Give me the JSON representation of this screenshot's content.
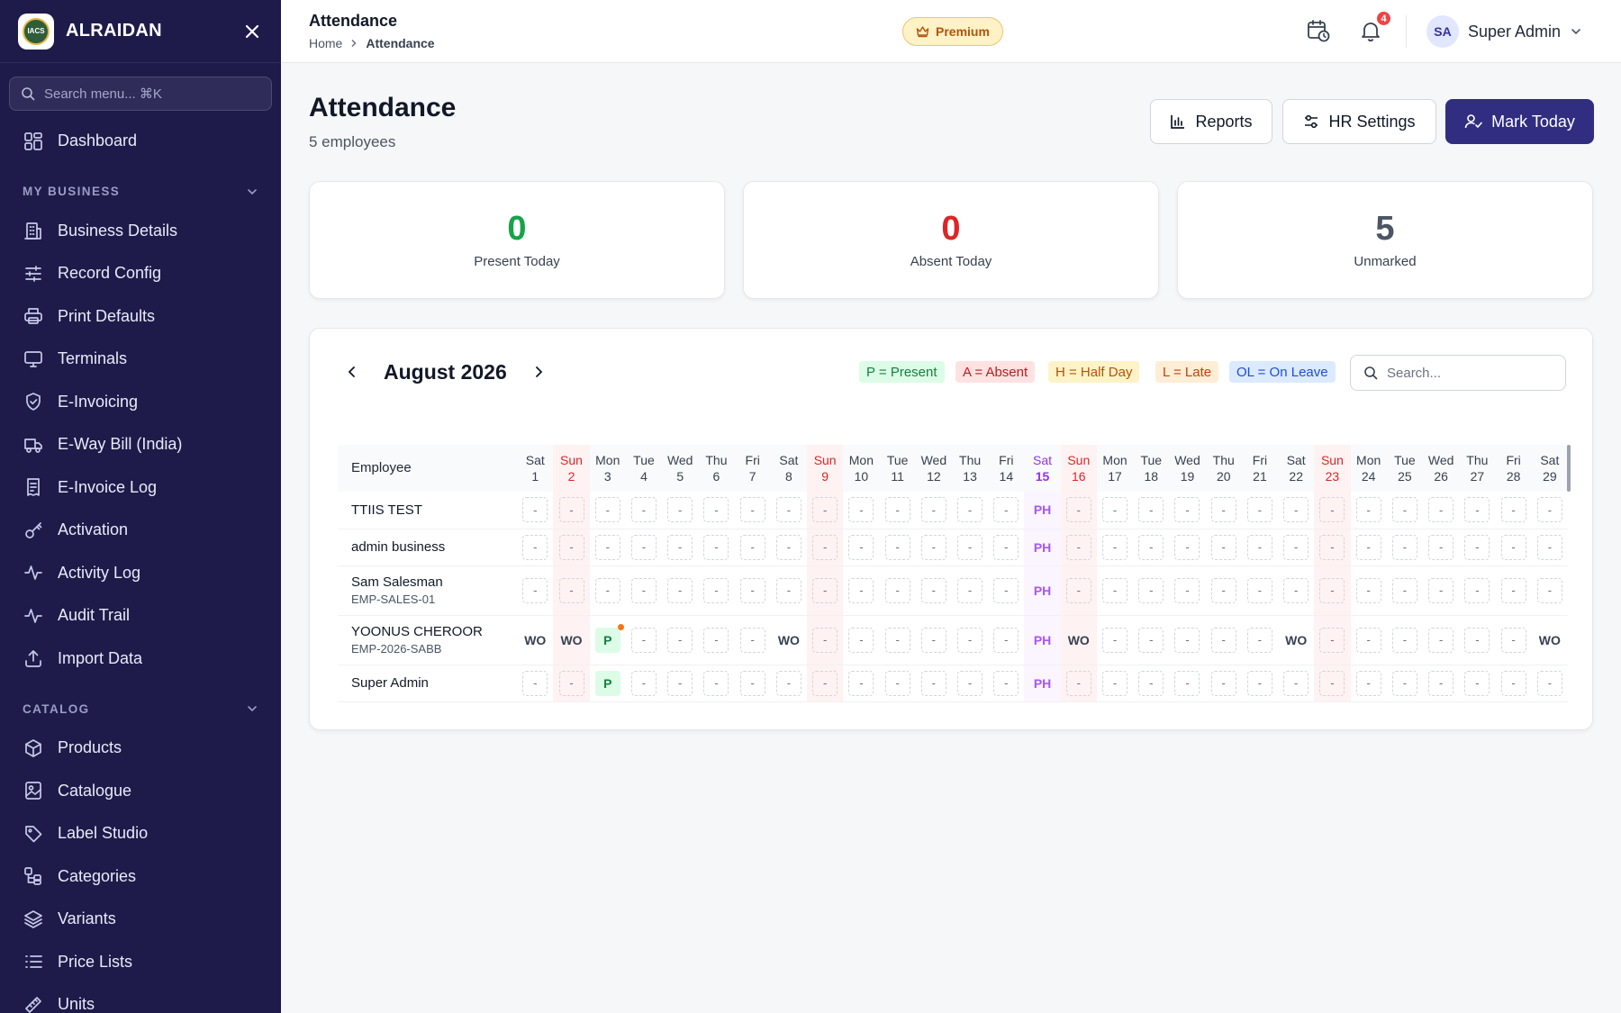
{
  "sidebar": {
    "brand": "ALRAIDAN",
    "logo_text": "IACS",
    "search_placeholder": "Search menu... ⌘K",
    "top_items": [
      {
        "label": "Dashboard",
        "icon": "dashboard-icon"
      }
    ],
    "sections": [
      {
        "title": "MY BUSINESS",
        "items": [
          {
            "label": "Business Details",
            "icon": "building-icon"
          },
          {
            "label": "Record Config",
            "icon": "sliders-icon"
          },
          {
            "label": "Print Defaults",
            "icon": "printer-icon"
          },
          {
            "label": "Terminals",
            "icon": "monitor-icon"
          },
          {
            "label": "E-Invoicing",
            "icon": "shield-check-icon"
          },
          {
            "label": "E-Way Bill (India)",
            "icon": "truck-icon"
          },
          {
            "label": "E-Invoice Log",
            "icon": "receipt-icon"
          },
          {
            "label": "Activation",
            "icon": "key-icon"
          },
          {
            "label": "Activity Log",
            "icon": "activity-icon"
          },
          {
            "label": "Audit Trail",
            "icon": "activity-icon"
          },
          {
            "label": "Import Data",
            "icon": "upload-icon"
          }
        ]
      },
      {
        "title": "CATALOG",
        "items": [
          {
            "label": "Products",
            "icon": "package-icon"
          },
          {
            "label": "Catalogue",
            "icon": "image-icon"
          },
          {
            "label": "Label Studio",
            "icon": "tag-icon"
          },
          {
            "label": "Categories",
            "icon": "categories-icon"
          },
          {
            "label": "Variants",
            "icon": "layers-icon"
          },
          {
            "label": "Price Lists",
            "icon": "list-icon"
          },
          {
            "label": "Units",
            "icon": "ruler-icon"
          }
        ]
      }
    ]
  },
  "topbar": {
    "title": "Attendance",
    "breadcrumb": [
      "Home",
      "Attendance"
    ],
    "premium": "Premium",
    "notifications": "4",
    "user_initials": "SA",
    "user_name": "Super Admin"
  },
  "page": {
    "title": "Attendance",
    "subtitle": "5 employees",
    "buttons": {
      "reports": "Reports",
      "hr_settings": "HR Settings",
      "mark_today": "Mark Today"
    }
  },
  "stats": [
    {
      "value": "0",
      "label": "Present Today",
      "color": "#16a34a"
    },
    {
      "value": "0",
      "label": "Absent Today",
      "color": "#dc2626"
    },
    {
      "value": "5",
      "label": "Unmarked",
      "color": "#4b5563"
    }
  ],
  "calendar": {
    "month": "August 2026",
    "legend": [
      {
        "label": "P = Present",
        "bg": "#dcfce7",
        "fg": "#15803d"
      },
      {
        "label": "A = Absent",
        "bg": "#fee2e2",
        "fg": "#b91c1c"
      },
      {
        "label": "H = Half Day",
        "bg": "#fef3c7",
        "fg": "#b45309"
      },
      {
        "label": "L = Late",
        "bg": "#ffedd5",
        "fg": "#c2410c"
      },
      {
        "label": "OL = On Leave",
        "bg": "#dbeafe",
        "fg": "#1d4ed8"
      }
    ],
    "search_placeholder": "Search...",
    "employee_header": "Employee",
    "days": [
      {
        "dow": "Sat",
        "d": "1"
      },
      {
        "dow": "Sun",
        "d": "2",
        "sun": true
      },
      {
        "dow": "Mon",
        "d": "3"
      },
      {
        "dow": "Tue",
        "d": "4"
      },
      {
        "dow": "Wed",
        "d": "5"
      },
      {
        "dow": "Thu",
        "d": "6"
      },
      {
        "dow": "Fri",
        "d": "7"
      },
      {
        "dow": "Sat",
        "d": "8"
      },
      {
        "dow": "Sun",
        "d": "9",
        "sun": true
      },
      {
        "dow": "Mon",
        "d": "10"
      },
      {
        "dow": "Tue",
        "d": "11"
      },
      {
        "dow": "Wed",
        "d": "12"
      },
      {
        "dow": "Thu",
        "d": "13"
      },
      {
        "dow": "Fri",
        "d": "14"
      },
      {
        "dow": "Sat",
        "d": "15",
        "hol": true
      },
      {
        "dow": "Sun",
        "d": "16",
        "sun": true
      },
      {
        "dow": "Mon",
        "d": "17"
      },
      {
        "dow": "Tue",
        "d": "18"
      },
      {
        "dow": "Wed",
        "d": "19"
      },
      {
        "dow": "Thu",
        "d": "20"
      },
      {
        "dow": "Fri",
        "d": "21"
      },
      {
        "dow": "Sat",
        "d": "22"
      },
      {
        "dow": "Sun",
        "d": "23",
        "sun": true
      },
      {
        "dow": "Mon",
        "d": "24"
      },
      {
        "dow": "Tue",
        "d": "25"
      },
      {
        "dow": "Wed",
        "d": "26"
      },
      {
        "dow": "Thu",
        "d": "27"
      },
      {
        "dow": "Fri",
        "d": "28"
      },
      {
        "dow": "Sat",
        "d": "29"
      }
    ],
    "employees": [
      {
        "name": "TTIIS TEST",
        "code": "",
        "cells": [
          "-",
          "-",
          "-",
          "-",
          "-",
          "-",
          "-",
          "-",
          "-",
          "-",
          "-",
          "-",
          "-",
          "-",
          "PH",
          "-",
          "-",
          "-",
          "-",
          "-",
          "-",
          "-",
          "-",
          "-",
          "-",
          "-",
          "-",
          "-",
          "-"
        ]
      },
      {
        "name": "admin business",
        "code": "",
        "cells": [
          "-",
          "-",
          "-",
          "-",
          "-",
          "-",
          "-",
          "-",
          "-",
          "-",
          "-",
          "-",
          "-",
          "-",
          "PH",
          "-",
          "-",
          "-",
          "-",
          "-",
          "-",
          "-",
          "-",
          "-",
          "-",
          "-",
          "-",
          "-",
          "-"
        ]
      },
      {
        "name": "Sam Salesman",
        "code": "EMP-SALES-01",
        "cells": [
          "-",
          "-",
          "-",
          "-",
          "-",
          "-",
          "-",
          "-",
          "-",
          "-",
          "-",
          "-",
          "-",
          "-",
          "PH",
          "-",
          "-",
          "-",
          "-",
          "-",
          "-",
          "-",
          "-",
          "-",
          "-",
          "-",
          "-",
          "-",
          "-"
        ]
      },
      {
        "name": "YOONUS CHEROOR",
        "code": "EMP-2026-SABB",
        "cells": [
          "WO",
          "WO",
          "P",
          "-",
          "-",
          "-",
          "-",
          "WO",
          "-",
          "-",
          "-",
          "-",
          "-",
          "-",
          "PH",
          "WO",
          "-",
          "-",
          "-",
          "-",
          "-",
          "WO",
          "-",
          "-",
          "-",
          "-",
          "-",
          "-",
          "WO"
        ],
        "dot_on": 2
      },
      {
        "name": "Super Admin",
        "code": "",
        "cells": [
          "-",
          "-",
          "P",
          "-",
          "-",
          "-",
          "-",
          "-",
          "-",
          "-",
          "-",
          "-",
          "-",
          "-",
          "PH",
          "-",
          "-",
          "-",
          "-",
          "-",
          "-",
          "-",
          "-",
          "-",
          "-",
          "-",
          "-",
          "-",
          "-"
        ]
      }
    ]
  }
}
